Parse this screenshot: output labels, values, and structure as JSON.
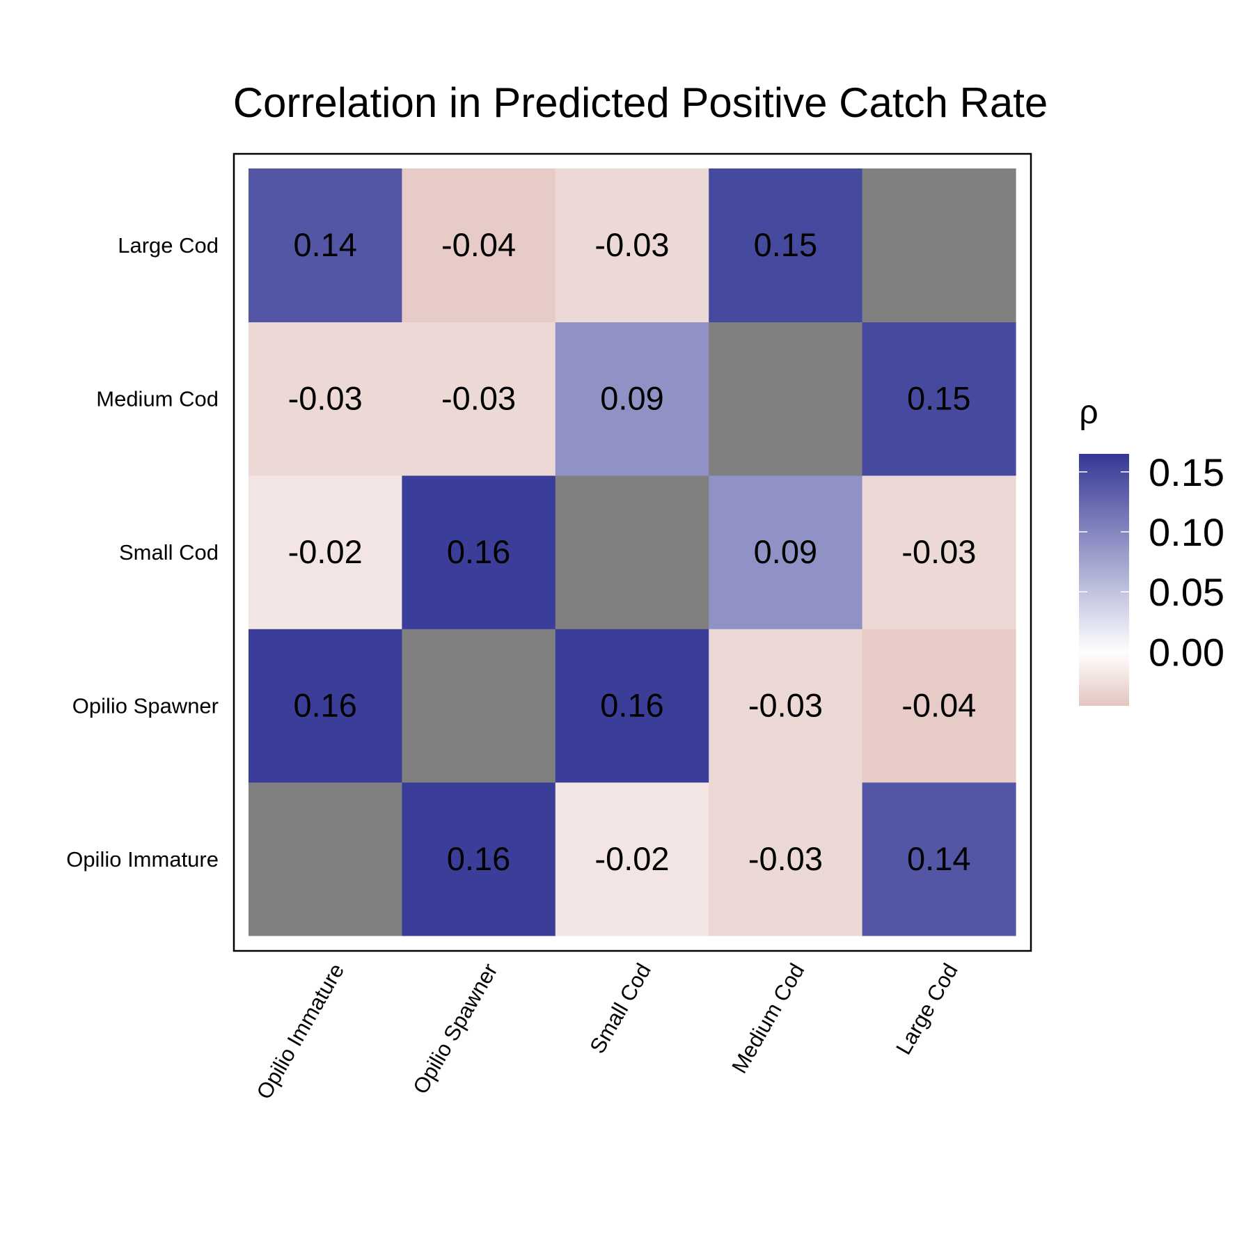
{
  "chart_data": {
    "type": "heatmap",
    "title": "Correlation in Predicted Positive Catch Rate",
    "xlabel": "",
    "ylabel": "",
    "x_categories": [
      "Opilio Immature",
      "Opilio Spawner",
      "Small Cod",
      "Medium Cod",
      "Large Cod"
    ],
    "y_categories": [
      "Opilio Immature",
      "Opilio Spawner",
      "Small Cod",
      "Medium Cod",
      "Large Cod"
    ],
    "matrix": [
      [
        null,
        0.16,
        -0.02,
        -0.03,
        0.14
      ],
      [
        0.16,
        null,
        0.16,
        -0.03,
        -0.04
      ],
      [
        -0.02,
        0.16,
        null,
        0.09,
        -0.03
      ],
      [
        -0.03,
        -0.03,
        0.09,
        null,
        0.15
      ],
      [
        0.14,
        -0.04,
        -0.03,
        0.15,
        null
      ]
    ],
    "cell_labels": [
      [
        "",
        "0.16",
        "-0.02",
        "-0.03",
        "0.14"
      ],
      [
        "0.16",
        "",
        "0.16",
        "-0.03",
        "-0.04"
      ],
      [
        "-0.02",
        "0.16",
        "",
        "0.09",
        "-0.03"
      ],
      [
        "-0.03",
        "-0.03",
        "0.09",
        "",
        "0.15"
      ],
      [
        "0.14",
        "-0.04",
        "-0.03",
        "0.15",
        ""
      ]
    ],
    "diagonal_color": "#808080",
    "legend": {
      "title": "ρ",
      "position": "right",
      "ticks": [
        0.15,
        0.1,
        0.05,
        0.0
      ],
      "tick_labels": [
        "0.15",
        "0.10",
        "0.05",
        "0.00"
      ],
      "range": [
        -0.045,
        0.165
      ],
      "low_color": "#e3c5bf",
      "mid_color": "#ffffff",
      "high_color": "#343895"
    },
    "grid": false
  }
}
